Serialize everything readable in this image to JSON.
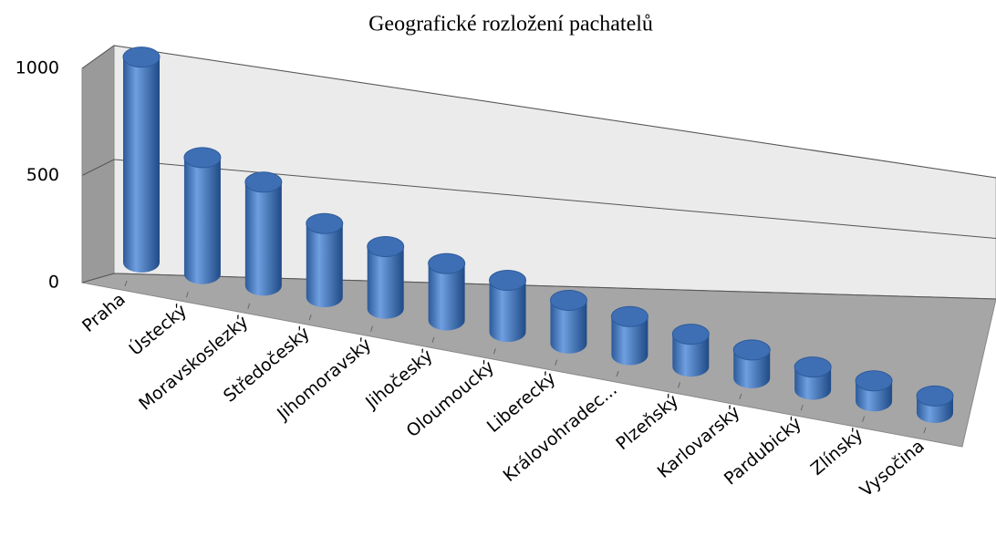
{
  "chart_data": {
    "type": "bar3d",
    "title": "Geografické rozložení pachatelů",
    "categories": [
      "Praha",
      "Ústecký",
      "Moravskoslezký",
      "Středočeský",
      "Jihomoravský",
      "Jihočeský",
      "Oloumoucký",
      "Liberecký",
      "Královohradec...",
      "Plzeňský",
      "Karlovarský",
      "Pardubický",
      "Zlínský",
      "Vysočina"
    ],
    "values": [
      980,
      570,
      520,
      380,
      330,
      310,
      290,
      250,
      230,
      200,
      180,
      150,
      140,
      120
    ],
    "color": "#4f81bd",
    "ylim": [
      0,
      1000
    ],
    "yticks": [
      0,
      500,
      1000
    ],
    "grid": true
  }
}
